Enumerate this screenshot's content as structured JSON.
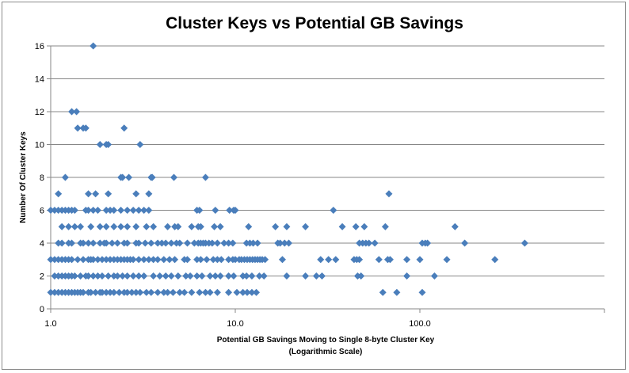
{
  "chart_data": {
    "type": "scatter",
    "title": "Cluster Keys vs Potential GB Savings",
    "xlabel_line1": "Potential GB Savings  Moving to Single 8-byte Cluster Key",
    "xlabel_line2": "(Logarithmic Scale)",
    "ylabel": "Number Of Cluster Keys",
    "x_scale": "log",
    "xlim": [
      1.0,
      1000.0
    ],
    "ylim": [
      0,
      16
    ],
    "x_ticks": [
      1.0,
      10.0,
      100.0
    ],
    "x_tick_labels": [
      "1.0",
      "10.0",
      "100.0"
    ],
    "y_ticks": [
      0,
      2,
      4,
      6,
      8,
      10,
      12,
      14,
      16
    ],
    "y_tick_labels": [
      "0",
      "2",
      "4",
      "6",
      "8",
      "10",
      "12",
      "14",
      "16"
    ],
    "grid": "horizontal",
    "legend": "none",
    "marker": "diamond",
    "marker_color": "#4a7ebb",
    "series": [
      {
        "points": [
          [
            1.7,
            16
          ],
          [
            1.3,
            12
          ],
          [
            1.38,
            12
          ],
          [
            1.4,
            11
          ],
          [
            1.5,
            11
          ],
          [
            1.55,
            11
          ],
          [
            2.5,
            11
          ],
          [
            1.85,
            10
          ],
          [
            2.0,
            10
          ],
          [
            2.05,
            10
          ],
          [
            3.05,
            10
          ],
          [
            1.2,
            8
          ],
          [
            2.4,
            8
          ],
          [
            2.45,
            8
          ],
          [
            2.65,
            8
          ],
          [
            3.5,
            8
          ],
          [
            3.55,
            8
          ],
          [
            4.65,
            8
          ],
          [
            6.9,
            8
          ],
          [
            1.1,
            7
          ],
          [
            1.6,
            7
          ],
          [
            1.75,
            7
          ],
          [
            2.05,
            7
          ],
          [
            2.9,
            7
          ],
          [
            3.4,
            7
          ],
          [
            68,
            7
          ],
          [
            1.0,
            6
          ],
          [
            1.05,
            6
          ],
          [
            1.1,
            6
          ],
          [
            1.15,
            6
          ],
          [
            1.2,
            6
          ],
          [
            1.25,
            6
          ],
          [
            1.3,
            6
          ],
          [
            1.35,
            6
          ],
          [
            1.55,
            6
          ],
          [
            1.6,
            6
          ],
          [
            1.7,
            6
          ],
          [
            1.8,
            6
          ],
          [
            2.0,
            6
          ],
          [
            2.1,
            6
          ],
          [
            2.2,
            6
          ],
          [
            2.4,
            6
          ],
          [
            2.6,
            6
          ],
          [
            2.8,
            6
          ],
          [
            3.0,
            6
          ],
          [
            3.2,
            6
          ],
          [
            3.4,
            6
          ],
          [
            6.2,
            6
          ],
          [
            6.4,
            6
          ],
          [
            7.8,
            6
          ],
          [
            9.3,
            6
          ],
          [
            9.8,
            6
          ],
          [
            10.0,
            6
          ],
          [
            34,
            6
          ],
          [
            1.15,
            5
          ],
          [
            1.25,
            5
          ],
          [
            1.35,
            5
          ],
          [
            1.45,
            5
          ],
          [
            1.65,
            5
          ],
          [
            1.85,
            5
          ],
          [
            2.0,
            5
          ],
          [
            2.2,
            5
          ],
          [
            2.4,
            5
          ],
          [
            2.6,
            5
          ],
          [
            2.9,
            5
          ],
          [
            3.3,
            5
          ],
          [
            3.6,
            5
          ],
          [
            4.3,
            5
          ],
          [
            4.7,
            5
          ],
          [
            4.9,
            5
          ],
          [
            5.8,
            5
          ],
          [
            6.3,
            5
          ],
          [
            6.5,
            5
          ],
          [
            7.7,
            5
          ],
          [
            8.3,
            5
          ],
          [
            11.8,
            5
          ],
          [
            16.5,
            5
          ],
          [
            19,
            5
          ],
          [
            24,
            5
          ],
          [
            38,
            5
          ],
          [
            45,
            5
          ],
          [
            50,
            5
          ],
          [
            65,
            5
          ],
          [
            155,
            5
          ],
          [
            1.1,
            4
          ],
          [
            1.15,
            4
          ],
          [
            1.25,
            4
          ],
          [
            1.3,
            4
          ],
          [
            1.45,
            4
          ],
          [
            1.5,
            4
          ],
          [
            1.6,
            4
          ],
          [
            1.7,
            4
          ],
          [
            1.85,
            4
          ],
          [
            1.95,
            4
          ],
          [
            2.0,
            4
          ],
          [
            2.15,
            4
          ],
          [
            2.3,
            4
          ],
          [
            2.5,
            4
          ],
          [
            2.6,
            4
          ],
          [
            2.9,
            4
          ],
          [
            3.0,
            4
          ],
          [
            3.25,
            4
          ],
          [
            3.5,
            4
          ],
          [
            3.8,
            4
          ],
          [
            4.0,
            4
          ],
          [
            4.2,
            4
          ],
          [
            4.5,
            4
          ],
          [
            4.8,
            4
          ],
          [
            5.0,
            4
          ],
          [
            5.5,
            4
          ],
          [
            6.0,
            4
          ],
          [
            6.3,
            4
          ],
          [
            6.5,
            4
          ],
          [
            6.7,
            4
          ],
          [
            6.9,
            4
          ],
          [
            7.2,
            4
          ],
          [
            7.5,
            4
          ],
          [
            8.0,
            4
          ],
          [
            8.7,
            4
          ],
          [
            9.2,
            4
          ],
          [
            9.7,
            4
          ],
          [
            11.5,
            4
          ],
          [
            12.0,
            4
          ],
          [
            12.5,
            4
          ],
          [
            13.2,
            4
          ],
          [
            17.0,
            4
          ],
          [
            17.5,
            4
          ],
          [
            18.5,
            4
          ],
          [
            19.5,
            4
          ],
          [
            47,
            4
          ],
          [
            49,
            4
          ],
          [
            51,
            4
          ],
          [
            53,
            4
          ],
          [
            57,
            4
          ],
          [
            103,
            4
          ],
          [
            107,
            4
          ],
          [
            110,
            4
          ],
          [
            175,
            4
          ],
          [
            370,
            4
          ],
          [
            1.0,
            3
          ],
          [
            1.05,
            3
          ],
          [
            1.1,
            3
          ],
          [
            1.15,
            3
          ],
          [
            1.2,
            3
          ],
          [
            1.25,
            3
          ],
          [
            1.3,
            3
          ],
          [
            1.4,
            3
          ],
          [
            1.5,
            3
          ],
          [
            1.6,
            3
          ],
          [
            1.65,
            3
          ],
          [
            1.7,
            3
          ],
          [
            1.8,
            3
          ],
          [
            1.9,
            3
          ],
          [
            2.0,
            3
          ],
          [
            2.1,
            3
          ],
          [
            2.2,
            3
          ],
          [
            2.3,
            3
          ],
          [
            2.4,
            3
          ],
          [
            2.5,
            3
          ],
          [
            2.6,
            3
          ],
          [
            2.7,
            3
          ],
          [
            2.8,
            3
          ],
          [
            3.0,
            3
          ],
          [
            3.2,
            3
          ],
          [
            3.4,
            3
          ],
          [
            3.6,
            3
          ],
          [
            3.8,
            3
          ],
          [
            4.1,
            3
          ],
          [
            4.4,
            3
          ],
          [
            4.7,
            3
          ],
          [
            5.3,
            3
          ],
          [
            5.5,
            3
          ],
          [
            6.2,
            3
          ],
          [
            6.5,
            3
          ],
          [
            7.0,
            3
          ],
          [
            7.6,
            3
          ],
          [
            8.0,
            3
          ],
          [
            8.4,
            3
          ],
          [
            9.2,
            3
          ],
          [
            9.7,
            3
          ],
          [
            10.0,
            3
          ],
          [
            10.5,
            3
          ],
          [
            10.8,
            3
          ],
          [
            11.2,
            3
          ],
          [
            11.6,
            3
          ],
          [
            12.0,
            3
          ],
          [
            12.4,
            3
          ],
          [
            12.8,
            3
          ],
          [
            13.2,
            3
          ],
          [
            13.6,
            3
          ],
          [
            14.0,
            3
          ],
          [
            14.5,
            3
          ],
          [
            18.0,
            3
          ],
          [
            29,
            3
          ],
          [
            32,
            3
          ],
          [
            35,
            3
          ],
          [
            44,
            3
          ],
          [
            45.5,
            3
          ],
          [
            47,
            3
          ],
          [
            60,
            3
          ],
          [
            67,
            3
          ],
          [
            69,
            3
          ],
          [
            85,
            3
          ],
          [
            100,
            3
          ],
          [
            140,
            3
          ],
          [
            255,
            3
          ],
          [
            1.05,
            2
          ],
          [
            1.1,
            2
          ],
          [
            1.15,
            2
          ],
          [
            1.2,
            2
          ],
          [
            1.25,
            2
          ],
          [
            1.3,
            2
          ],
          [
            1.35,
            2
          ],
          [
            1.45,
            2
          ],
          [
            1.55,
            2
          ],
          [
            1.6,
            2
          ],
          [
            1.7,
            2
          ],
          [
            1.8,
            2
          ],
          [
            1.9,
            2
          ],
          [
            2.05,
            2
          ],
          [
            2.2,
            2
          ],
          [
            2.3,
            2
          ],
          [
            2.45,
            2
          ],
          [
            2.6,
            2
          ],
          [
            2.8,
            2
          ],
          [
            3.0,
            2
          ],
          [
            3.2,
            2
          ],
          [
            3.6,
            2
          ],
          [
            3.9,
            2
          ],
          [
            4.2,
            2
          ],
          [
            4.5,
            2
          ],
          [
            4.9,
            2
          ],
          [
            5.4,
            2
          ],
          [
            5.7,
            2
          ],
          [
            6.2,
            2
          ],
          [
            6.6,
            2
          ],
          [
            7.3,
            2
          ],
          [
            7.8,
            2
          ],
          [
            8.3,
            2
          ],
          [
            9.2,
            2
          ],
          [
            9.8,
            2
          ],
          [
            11.0,
            2
          ],
          [
            11.5,
            2
          ],
          [
            12.3,
            2
          ],
          [
            13.5,
            2
          ],
          [
            14.3,
            2
          ],
          [
            19.0,
            2
          ],
          [
            24.0,
            2
          ],
          [
            27.5,
            2
          ],
          [
            29.5,
            2
          ],
          [
            46,
            2
          ],
          [
            48,
            2
          ],
          [
            85,
            2
          ],
          [
            120,
            2
          ],
          [
            1.0,
            1
          ],
          [
            1.05,
            1
          ],
          [
            1.1,
            1
          ],
          [
            1.15,
            1
          ],
          [
            1.2,
            1
          ],
          [
            1.25,
            1
          ],
          [
            1.3,
            1
          ],
          [
            1.35,
            1
          ],
          [
            1.4,
            1
          ],
          [
            1.45,
            1
          ],
          [
            1.5,
            1
          ],
          [
            1.6,
            1
          ],
          [
            1.65,
            1
          ],
          [
            1.75,
            1
          ],
          [
            1.85,
            1
          ],
          [
            1.9,
            1
          ],
          [
            2.0,
            1
          ],
          [
            2.1,
            1
          ],
          [
            2.2,
            1
          ],
          [
            2.35,
            1
          ],
          [
            2.5,
            1
          ],
          [
            2.6,
            1
          ],
          [
            2.75,
            1
          ],
          [
            2.9,
            1
          ],
          [
            3.05,
            1
          ],
          [
            3.3,
            1
          ],
          [
            3.5,
            1
          ],
          [
            3.8,
            1
          ],
          [
            4.1,
            1
          ],
          [
            4.3,
            1
          ],
          [
            4.6,
            1
          ],
          [
            5.0,
            1
          ],
          [
            5.3,
            1
          ],
          [
            5.8,
            1
          ],
          [
            6.4,
            1
          ],
          [
            6.9,
            1
          ],
          [
            7.3,
            1
          ],
          [
            8.0,
            1
          ],
          [
            9.2,
            1
          ],
          [
            10.2,
            1
          ],
          [
            11.0,
            1
          ],
          [
            11.6,
            1
          ],
          [
            12.3,
            1
          ],
          [
            13.0,
            1
          ],
          [
            63,
            1
          ],
          [
            75,
            1
          ],
          [
            103,
            1
          ]
        ]
      }
    ]
  }
}
